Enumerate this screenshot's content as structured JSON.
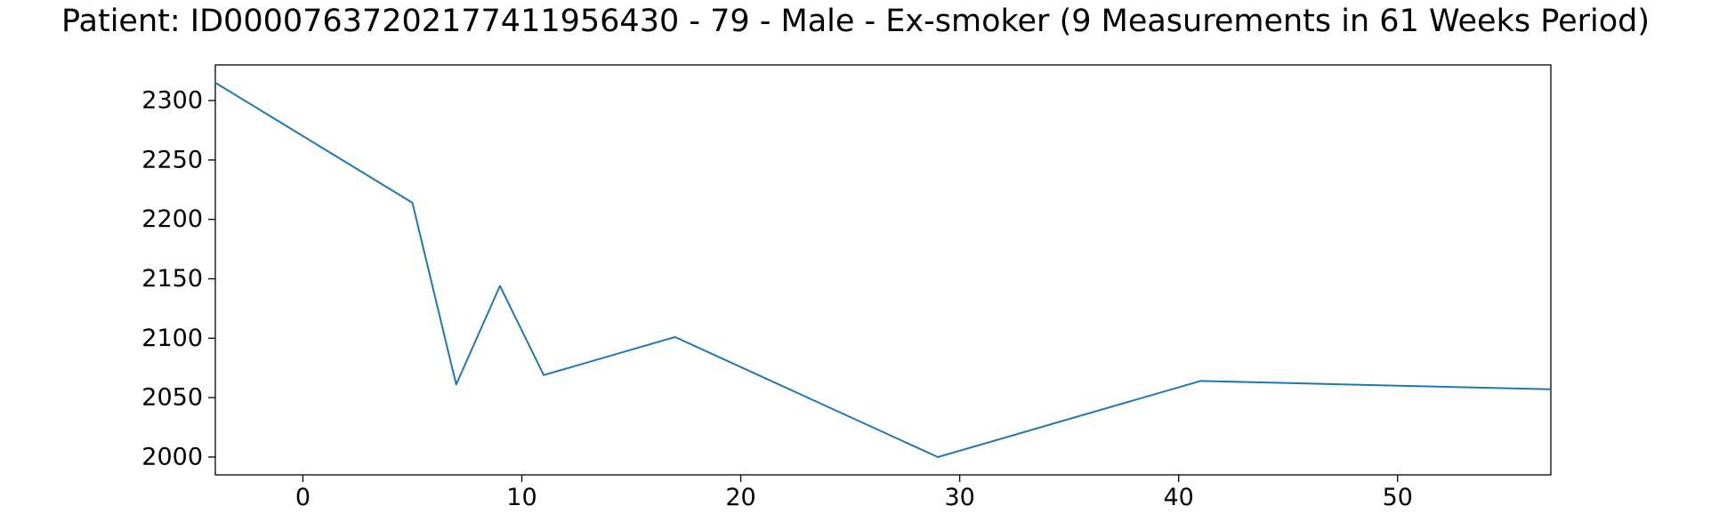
{
  "chart_data": {
    "type": "line",
    "title": "Patient: ID00007637202177411956430 - 79 - Male - Ex-smoker (9 Measurements in 61 Weeks Period)",
    "xlabel": "",
    "ylabel": "",
    "xlim": [
      -4,
      57
    ],
    "ylim": [
      1985,
      2330
    ],
    "xticks": [
      0,
      10,
      20,
      30,
      40,
      50
    ],
    "yticks": [
      2000,
      2050,
      2100,
      2150,
      2200,
      2250,
      2300
    ],
    "grid": false,
    "legend": "none",
    "series": [
      {
        "color": "#1f77b4",
        "x": [
          -4,
          5,
          7,
          9,
          11,
          17,
          29,
          41,
          57
        ],
        "y": [
          2315,
          2214,
          2061,
          2144,
          2069,
          2101,
          2000,
          2064,
          2057
        ]
      }
    ]
  }
}
